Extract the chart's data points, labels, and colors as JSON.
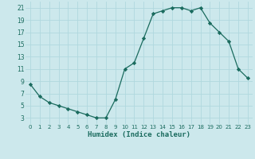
{
  "x": [
    0,
    1,
    2,
    3,
    4,
    5,
    6,
    7,
    8,
    9,
    10,
    11,
    12,
    13,
    14,
    15,
    16,
    17,
    18,
    19,
    20,
    21,
    22,
    23
  ],
  "y": [
    8.5,
    6.5,
    5.5,
    5.0,
    4.5,
    4.0,
    3.5,
    3.0,
    3.0,
    6.0,
    11.0,
    12.0,
    16.0,
    20.0,
    20.5,
    21.0,
    21.0,
    20.5,
    21.0,
    18.5,
    17.0,
    15.5,
    11.0,
    9.5
  ],
  "line_color": "#1a6b5e",
  "marker": "D",
  "marker_size": 2.2,
  "bg_color": "#cce8ec",
  "grid_color": "#b0d8de",
  "xlabel": "Humidex (Indice chaleur)",
  "xlim": [
    -0.5,
    23.5
  ],
  "ylim": [
    2,
    22
  ],
  "yticks": [
    3,
    5,
    7,
    9,
    11,
    13,
    15,
    17,
    19,
    21
  ],
  "xticks": [
    0,
    1,
    2,
    3,
    4,
    5,
    6,
    7,
    8,
    9,
    10,
    11,
    12,
    13,
    14,
    15,
    16,
    17,
    18,
    19,
    20,
    21,
    22,
    23
  ],
  "xtick_labels": [
    "0",
    "1",
    "2",
    "3",
    "4",
    "5",
    "6",
    "7",
    "8",
    "9",
    "10",
    "11",
    "12",
    "13",
    "14",
    "15",
    "16",
    "17",
    "18",
    "19",
    "20",
    "21",
    "22",
    "23"
  ],
  "tick_color": "#1a6b5e",
  "xlabel_fontsize": 6.5,
  "tick_fontsize_x": 5.0,
  "tick_fontsize_y": 5.5
}
